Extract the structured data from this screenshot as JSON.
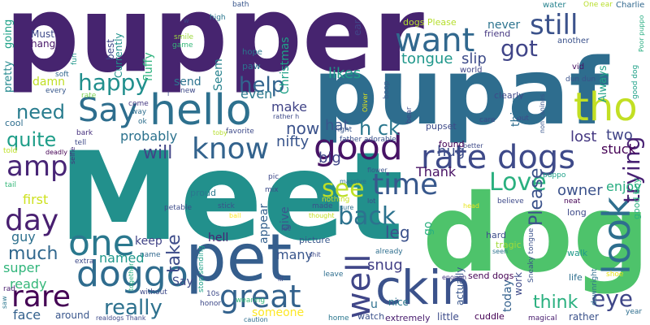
{
  "words": [
    {
      "text": "pupper",
      "color": "#46246f"
    },
    {
      "text": "pupaf",
      "color": "#2e6d8e"
    },
    {
      "text": "Meet",
      "color": "#22908c"
    },
    {
      "text": "dog",
      "color": "#4ec36b"
    },
    {
      "text": "pet",
      "color": "#355e8d"
    },
    {
      "text": "ckin",
      "color": "#3b528b"
    },
    {
      "text": "Say",
      "color": "#2e6e8e"
    },
    {
      "text": "hello",
      "color": "#2d708e"
    },
    {
      "text": "tho",
      "color": "#c2df23"
    },
    {
      "text": "want",
      "color": "#31688e"
    },
    {
      "text": "still",
      "color": "#3b528b"
    },
    {
      "text": "good",
      "color": "#471365"
    },
    {
      "text": "rate dogs",
      "color": "#3e4a89"
    },
    {
      "text": "look",
      "color": "#2e6e8e"
    },
    {
      "text": "know",
      "color": "#33638d"
    },
    {
      "text": "one",
      "color": "#2a788e"
    },
    {
      "text": "doggo",
      "color": "#2f6c8e"
    },
    {
      "text": "day",
      "color": "#481f70"
    },
    {
      "text": "amp",
      "color": "#482576"
    },
    {
      "text": "happy",
      "color": "#218f8d"
    },
    {
      "text": "time",
      "color": "#38588c"
    },
    {
      "text": "Love",
      "color": "#2ab07f"
    },
    {
      "text": "back",
      "color": "#2c728e"
    },
    {
      "text": "rare",
      "color": "#440154"
    },
    {
      "text": "great",
      "color": "#33628d"
    },
    {
      "text": "well",
      "color": "#404688"
    },
    {
      "text": "help",
      "color": "#32648e"
    },
    {
      "text": "see",
      "color": "#bddf26"
    },
    {
      "text": "h ck",
      "color": "#2a778e"
    },
    {
      "text": "quite",
      "color": "#1f9e89"
    },
    {
      "text": "need",
      "color": "#287c8e"
    },
    {
      "text": "eye",
      "color": "#3f4788"
    },
    {
      "text": "really",
      "color": "#2d718e"
    },
    {
      "text": "got",
      "color": "#404588"
    },
    {
      "text": "trying",
      "color": "#482173"
    },
    {
      "text": "Please",
      "color": "#3b528b"
    },
    {
      "text": "think",
      "color": "#2ab07f"
    },
    {
      "text": "now",
      "color": "#3b528b"
    },
    {
      "text": "will",
      "color": "#414487"
    },
    {
      "text": "much",
      "color": "#31688e"
    },
    {
      "text": "lost",
      "color": "#453882"
    },
    {
      "text": "two",
      "color": "#414487"
    },
    {
      "text": "stuck",
      "color": "#440154"
    },
    {
      "text": "tongue",
      "color": "#1f978b"
    },
    {
      "text": "slip",
      "color": "#3e4c8a"
    },
    {
      "text": "likes",
      "color": "#1e9c89"
    },
    {
      "text": "probably",
      "color": "#2c728e"
    },
    {
      "text": "take",
      "color": "#3e4c8a"
    },
    {
      "text": "leg",
      "color": "#3b518b"
    },
    {
      "text": "Thank",
      "color": "#471164"
    },
    {
      "text": "make",
      "color": "#414487"
    },
    {
      "text": "hat",
      "color": "#39568c"
    },
    {
      "text": "nifty",
      "color": "#39558c"
    },
    {
      "text": "big",
      "color": "#404688"
    },
    {
      "text": "hug",
      "color": "#3d4d8a"
    },
    {
      "text": "snug",
      "color": "#424086"
    },
    {
      "text": "named",
      "color": "#1f988b"
    },
    {
      "text": "owner",
      "color": "#3b528b"
    },
    {
      "text": "enjoy",
      "color": "#27ad81"
    },
    {
      "text": "even",
      "color": "#2a788e"
    },
    {
      "text": "first",
      "color": "#cde11d"
    },
    {
      "text": "guy",
      "color": "#2d708e"
    },
    {
      "text": "super",
      "color": "#31b57b"
    },
    {
      "text": "ready",
      "color": "#35b779"
    },
    {
      "text": "face",
      "color": "#34618d"
    },
    {
      "text": "around",
      "color": "#39568c"
    },
    {
      "text": "someone",
      "color": "#fde725"
    },
    {
      "text": "u",
      "color": "#2d708e"
    },
    {
      "text": "nice",
      "color": "#2a788e"
    },
    {
      "text": "hell",
      "color": "#482173"
    },
    {
      "text": "keep",
      "color": "#414487"
    },
    {
      "text": "many",
      "color": "#39568c"
    },
    {
      "text": "appear",
      "color": "#34608d"
    },
    {
      "text": "give",
      "color": "#39568c"
    },
    {
      "text": "Christmas",
      "color": "#1fa187"
    },
    {
      "text": "Seem",
      "color": "#26828e"
    },
    {
      "text": "send",
      "color": "#2c728e"
    },
    {
      "text": "damn",
      "color": "#c0df25"
    },
    {
      "text": "pretty",
      "color": "#23898e"
    },
    {
      "text": "going",
      "color": "#1fa188"
    },
    {
      "text": "Must",
      "color": "#3e4a89"
    },
    {
      "text": "hang",
      "color": "#481769"
    },
    {
      "text": "best",
      "color": "#3e4989"
    },
    {
      "text": "fluffy",
      "color": "#2db27d"
    },
    {
      "text": "Currently",
      "color": "#21918c"
    },
    {
      "text": "hope",
      "color": "#2a768e"
    },
    {
      "text": "paw",
      "color": "#2c728e"
    },
    {
      "text": "ear",
      "color": "#414487"
    },
    {
      "text": "never",
      "color": "#2c738e"
    },
    {
      "text": "dogs Please",
      "color": "#b5de2b"
    },
    {
      "text": "friend",
      "color": "#453781"
    },
    {
      "text": "another",
      "color": "#3b528b"
    },
    {
      "text": "vid",
      "color": "#471063"
    },
    {
      "text": "world",
      "color": "#404688"
    },
    {
      "text": "water",
      "color": "#26828e"
    },
    {
      "text": "One ear",
      "color": "#b8de29"
    },
    {
      "text": "Charlie",
      "color": "#31688e"
    },
    {
      "text": "Poor puppo",
      "color": "#27ad81"
    },
    {
      "text": "good dog",
      "color": "#1fa188"
    },
    {
      "text": "dun dun",
      "color": "#3b528b"
    },
    {
      "text": "bath",
      "color": "#39568c"
    },
    {
      "text": "high",
      "color": "#2a768e"
    },
    {
      "text": "smile",
      "color": "#9dd93b"
    },
    {
      "text": "game",
      "color": "#35b779"
    },
    {
      "text": "fun",
      "color": "#1f968b"
    },
    {
      "text": "soft",
      "color": "#31688e"
    },
    {
      "text": "every",
      "color": "#38588c"
    },
    {
      "text": "rate",
      "color": "#7ad151"
    },
    {
      "text": "cool",
      "color": "#2e6e8e"
    },
    {
      "text": "come",
      "color": "#453882"
    },
    {
      "text": "way",
      "color": "#2e6e8e"
    },
    {
      "text": "ok",
      "color": "#2e6f8e"
    },
    {
      "text": "bark",
      "color": "#46307e"
    },
    {
      "text": "told",
      "color": "#bddf26"
    },
    {
      "text": "tell",
      "color": "#3e4a89"
    },
    {
      "text": "selfie",
      "color": "#46327e"
    },
    {
      "text": "deadly",
      "color": "#440154"
    },
    {
      "text": "tail",
      "color": "#35b779"
    },
    {
      "text": "extra",
      "color": "#3e4a89"
    },
    {
      "text": "rad",
      "color": "#481c6e"
    },
    {
      "text": "saw",
      "color": "#2a768e"
    },
    {
      "text": "together",
      "color": "#29af7f"
    },
    {
      "text": "name",
      "color": "#31688e"
    },
    {
      "text": "stop sending",
      "color": "#1fa188"
    },
    {
      "text": "petable",
      "color": "#3e4c8a"
    },
    {
      "text": "stick",
      "color": "#3b528b"
    },
    {
      "text": "ball",
      "color": "#fde725"
    },
    {
      "text": "proud",
      "color": "#2a788e"
    },
    {
      "text": "pic",
      "color": "#3e4989"
    },
    {
      "text": "mix",
      "color": "#3e4c8a"
    },
    {
      "text": "let",
      "color": "#3b528b"
    },
    {
      "text": "picture",
      "color": "#38588c"
    },
    {
      "text": "made",
      "color": "#3b518b"
    },
    {
      "text": "nothing",
      "color": "#c8e020"
    },
    {
      "text": "thought",
      "color": "#c5e021"
    },
    {
      "text": "massive",
      "color": "#2e6e8e"
    },
    {
      "text": "sure",
      "color": "#2c728e"
    },
    {
      "text": "lot",
      "color": "#3e4a89"
    },
    {
      "text": "flower",
      "color": "#3b528b"
    },
    {
      "text": "head",
      "color": "#e7e419"
    },
    {
      "text": "believe",
      "color": "#3e4a89"
    },
    {
      "text": "neat",
      "color": "#440154"
    },
    {
      "text": "long",
      "color": "#3e4a89"
    },
    {
      "text": "hard",
      "color": "#3d4d8a"
    },
    {
      "text": "tragic",
      "color": "#a0da39"
    },
    {
      "text": "seen",
      "color": "#2c728e"
    },
    {
      "text": "walk",
      "color": "#1f9a8a"
    },
    {
      "text": "life",
      "color": "#2e6e8e"
    },
    {
      "text": "shoe",
      "color": "#e5e419"
    },
    {
      "text": "year",
      "color": "#2e6e8e"
    },
    {
      "text": "downright",
      "color": "#2e6e8e"
    },
    {
      "text": "magical",
      "color": "#481c6e"
    },
    {
      "text": "rather",
      "color": "#3b528b"
    },
    {
      "text": "Sneaky tongue",
      "color": "#3b528b"
    },
    {
      "text": "work",
      "color": "#3e4a89"
    },
    {
      "text": "today",
      "color": "#34618d"
    },
    {
      "text": "actually",
      "color": "#39568c"
    },
    {
      "text": "go",
      "color": "#2ab07f"
    },
    {
      "text": "already",
      "color": "#2e6e8e"
    },
    {
      "text": "send dogs",
      "color": "#440154"
    },
    {
      "text": "enough",
      "color": "#453882"
    },
    {
      "text": "extremely",
      "color": "#481c6e"
    },
    {
      "text": "cuddle",
      "color": "#440154"
    },
    {
      "text": "little",
      "color": "#3e4c8a"
    },
    {
      "text": "home",
      "color": "#2a768e"
    },
    {
      "text": "watch",
      "color": "#3b528b"
    },
    {
      "text": "caution",
      "color": "#2e6e8e"
    },
    {
      "text": "leave",
      "color": "#2e6e8e"
    },
    {
      "text": "shit",
      "color": "#3e4a89"
    },
    {
      "text": "lil",
      "color": "#3e4a89"
    },
    {
      "text": "honor",
      "color": "#3e4a89"
    },
    {
      "text": "wearing",
      "color": "#35b779"
    },
    {
      "text": "without",
      "color": "#3e4a89"
    },
    {
      "text": "10s",
      "color": "#3e4a89"
    },
    {
      "text": "Say",
      "color": "#3e4a89"
    },
    {
      "text": "realdogs Thank",
      "color": "#3e4a89"
    },
    {
      "text": "new",
      "color": "#3e4a89"
    },
    {
      "text": "rather h",
      "color": "#3e4a89"
    },
    {
      "text": "favorite",
      "color": "#3e4a89"
    },
    {
      "text": "toby",
      "color": "#b5de2b"
    },
    {
      "text": "right",
      "color": "#39568c"
    },
    {
      "text": "father adorable",
      "color": "#3b528b"
    },
    {
      "text": "Oliver",
      "color": "#e3e418"
    },
    {
      "text": "boop",
      "color": "#39568c"
    },
    {
      "text": "bear",
      "color": "#3e4a89"
    },
    {
      "text": "pupset",
      "color": "#3e4a89"
    },
    {
      "text": "better",
      "color": "#3e4a89"
    },
    {
      "text": "care",
      "color": "#3e4a89"
    },
    {
      "text": "put",
      "color": "#3e4a89"
    },
    {
      "text": "clearly",
      "color": "#3e4a89"
    },
    {
      "text": "non canines",
      "color": "#39568c"
    },
    {
      "text": "Always",
      "color": "#1fa188"
    },
    {
      "text": "found",
      "color": "#440154"
    },
    {
      "text": "thing",
      "color": "#2e6e8e"
    },
    {
      "text": "puppo",
      "color": "#1fa188"
    },
    {
      "text": "good boy",
      "color": "#2ab07f"
    },
    {
      "text": "w",
      "color": "#3e4a89"
    },
    {
      "text": "i",
      "color": "#3e4a89"
    }
  ]
}
